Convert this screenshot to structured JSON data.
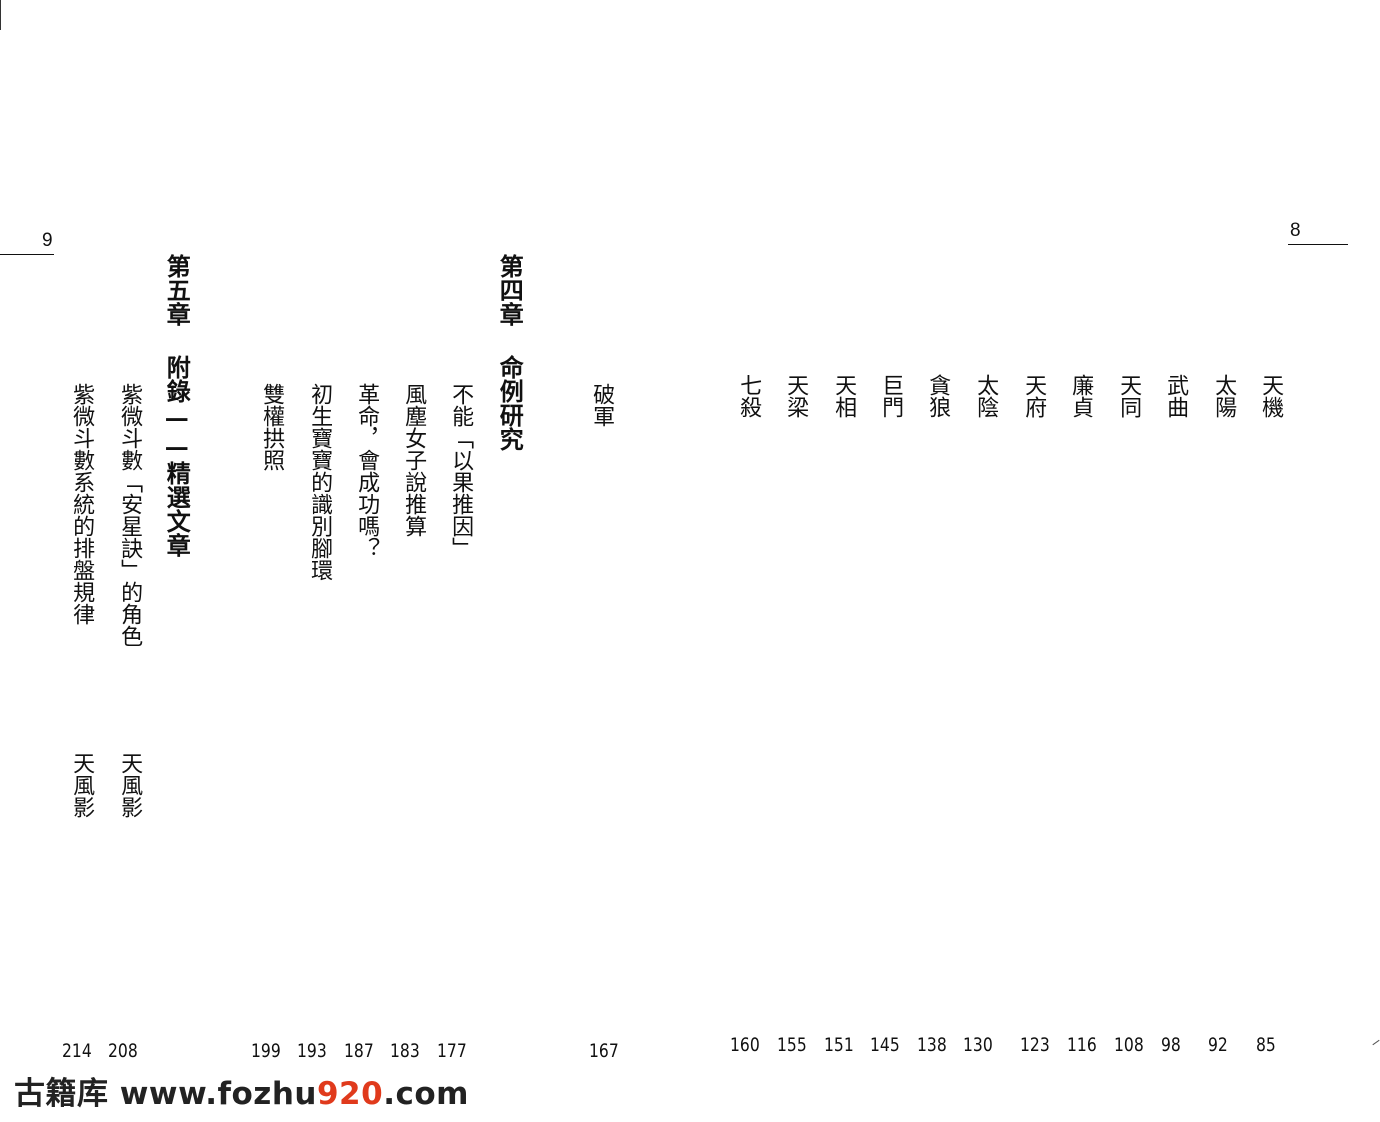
{
  "left_page": {
    "folio": "9",
    "chapter5": {
      "number": "第五章",
      "title": "附錄——精選文章"
    },
    "chapter5_items": [
      {
        "title": "紫微斗數「安星訣」的角色",
        "author": "天風影",
        "page": "208"
      },
      {
        "title": "紫微斗數系統的排盤規律",
        "author": "天風影",
        "page": "214"
      }
    ],
    "chapter4": {
      "number": "第四章",
      "title": "命例研究"
    },
    "chapter4_items": [
      {
        "title": "不能「以果推因」",
        "page": "177"
      },
      {
        "title": "風塵女子說推算",
        "page": "183"
      },
      {
        "title": "革命，會成功嗎？",
        "page": "187"
      },
      {
        "title": "初生寶寶的識別腳環",
        "page": "193"
      },
      {
        "title": "雙權拱照",
        "page": "199"
      }
    ],
    "star_pojun": {
      "title": "破軍",
      "page": "167"
    }
  },
  "right_page": {
    "folio": "8",
    "stars": [
      {
        "title": "天機",
        "page": "85"
      },
      {
        "title": "太陽",
        "page": "92"
      },
      {
        "title": "武曲",
        "page": "98"
      },
      {
        "title": "天同",
        "page": "108"
      },
      {
        "title": "廉貞",
        "page": "116"
      },
      {
        "title": "天府",
        "page": "123"
      },
      {
        "title": "太陰",
        "page": "130"
      },
      {
        "title": "貪狼",
        "page": "138"
      },
      {
        "title": "巨門",
        "page": "145"
      },
      {
        "title": "天相",
        "page": "151"
      },
      {
        "title": "天梁",
        "page": "155"
      },
      {
        "title": "七殺",
        "page": "160"
      }
    ]
  },
  "watermark": {
    "prefix": "古籍库 www.fozhu",
    "accent": "920",
    "suffix": ".com"
  }
}
